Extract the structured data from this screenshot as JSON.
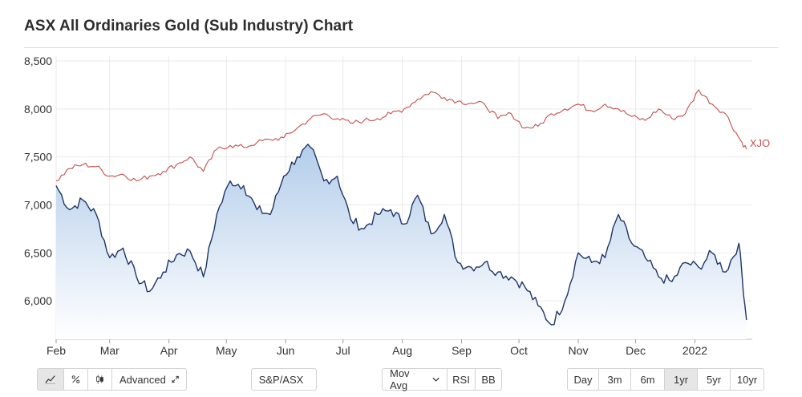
{
  "title": "ASX All Ordinaries Gold (Sub Industry) Chart",
  "toolbar": {
    "chart_type_buttons": [
      {
        "name": "line-chart-icon",
        "active": true
      },
      {
        "name": "percent-icon",
        "active": false
      },
      {
        "name": "candlestick-icon",
        "active": false
      }
    ],
    "advanced_label": "Advanced",
    "compare_label": "S&P/ASX",
    "indicator_label": "Mov Avg",
    "rsi_label": "RSI",
    "bb_label": "BB",
    "ranges": [
      "Day",
      "3m",
      "6m",
      "1yr",
      "5yr",
      "10yr"
    ],
    "active_range": "1yr"
  },
  "colors": {
    "main_line": "#1f3566",
    "fill_top": "#b3cdea",
    "fill_bottom": "#ffffff",
    "compare_line": "#c0504d",
    "grid": "#e9e9e9",
    "axis_text": "#333333"
  },
  "chart_data": {
    "type": "line",
    "x_labels": [
      "Feb",
      "Mar",
      "Apr",
      "May",
      "Jun",
      "Jul",
      "Aug",
      "Sep",
      "Oct",
      "Nov",
      "Dec",
      "2022"
    ],
    "x": [
      "2021-02-01",
      "2021-02-08",
      "2021-02-15",
      "2021-02-22",
      "2021-03-01",
      "2021-03-08",
      "2021-03-15",
      "2021-03-22",
      "2021-03-29",
      "2021-04-05",
      "2021-04-12",
      "2021-04-19",
      "2021-04-26",
      "2021-05-03",
      "2021-05-10",
      "2021-05-17",
      "2021-05-24",
      "2021-05-31",
      "2021-06-07",
      "2021-06-14",
      "2021-06-21",
      "2021-06-28",
      "2021-07-05",
      "2021-07-12",
      "2021-07-19",
      "2021-07-26",
      "2021-08-02",
      "2021-08-09",
      "2021-08-16",
      "2021-08-23",
      "2021-08-30",
      "2021-09-06",
      "2021-09-13",
      "2021-09-20",
      "2021-09-27",
      "2021-10-04",
      "2021-10-11",
      "2021-10-18",
      "2021-10-25",
      "2021-11-01",
      "2021-11-08",
      "2021-11-15",
      "2021-11-22",
      "2021-11-29",
      "2021-12-06",
      "2021-12-13",
      "2021-12-20",
      "2021-12-27",
      "2022-01-03",
      "2022-01-10",
      "2022-01-17",
      "2022-01-24",
      "2022-01-28"
    ],
    "series": [
      {
        "values": [
          7200,
          6950,
          7050,
          6900,
          6450,
          6550,
          6250,
          6100,
          6300,
          6480,
          6520,
          6250,
          6900,
          7250,
          7200,
          6950,
          6900,
          7300,
          7500,
          7600,
          7250,
          7300,
          6850,
          6750,
          6900,
          6950,
          6800,
          7100,
          6700,
          6900,
          6400,
          6350,
          6400,
          6300,
          6250,
          6150,
          5950,
          5750,
          6000,
          6500,
          6400,
          6450,
          6900,
          6600,
          6450,
          6250,
          6200,
          6400,
          6350,
          6500,
          6300,
          6600,
          5800
        ]
      },
      {
        "name": "XJO",
        "values": [
          7250,
          7380,
          7420,
          7400,
          7300,
          7320,
          7250,
          7300,
          7350,
          7420,
          7500,
          7350,
          7580,
          7620,
          7600,
          7650,
          7680,
          7700,
          7800,
          7900,
          7950,
          7900,
          7850,
          7880,
          7900,
          7950,
          8000,
          8100,
          8180,
          8120,
          8080,
          8060,
          8050,
          7900,
          7950,
          7800,
          7820,
          7950,
          8000,
          8050,
          7980,
          8050,
          8000,
          7920,
          7880,
          8000,
          7900,
          7950,
          8200,
          8050,
          7950,
          7700,
          7580
        ]
      }
    ],
    "ylim": [
      5600,
      8550
    ],
    "y_ticks": [
      6000,
      6500,
      7000,
      7500,
      8000,
      8500
    ],
    "grid": true
  }
}
